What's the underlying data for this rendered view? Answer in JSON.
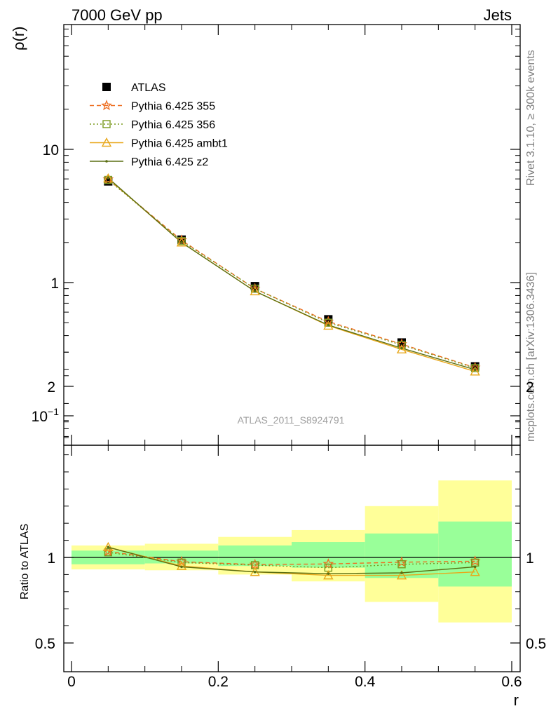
{
  "header": {
    "left": "7000 GeV pp",
    "right": "Jets"
  },
  "side_text": {
    "rivet": "Rivet 3.1.10, ≥ 300k events",
    "mcplots": "mcplots.cern.ch [arXiv:1306.3436]"
  },
  "colors": {
    "atlas": "#000000",
    "p355": "#ee6e20",
    "p356": "#7a9a1e",
    "ambt1": "#e8a71a",
    "z2": "#5a6e12",
    "band_inner": "#99ff99",
    "band_outer": "#ffff99"
  },
  "chart_data": [
    {
      "type": "scatter",
      "panel": "main",
      "watermark": "ATLAS_2011_S8924791",
      "ylabel": "ρ(r)",
      "yscale": "log",
      "ylim": [
        0.065,
        80
      ],
      "xlim": [
        -0.02,
        0.6
      ],
      "y_ticks": [
        "10−1",
        "1",
        "10"
      ],
      "legend_position": "top-left",
      "x": [
        0.05,
        0.15,
        0.25,
        0.35,
        0.45,
        0.55
      ],
      "series": [
        {
          "name": "ATLAS",
          "marker": "filled-square",
          "values": [
            5.75,
            2.1,
            0.94,
            0.53,
            0.355,
            0.235
          ]
        },
        {
          "name": "Pythia 6.425 355",
          "marker": "star",
          "line": "dashed",
          "values": [
            5.95,
            2.08,
            0.9,
            0.51,
            0.345,
            0.23
          ]
        },
        {
          "name": "Pythia 6.425 356",
          "marker": "open-square",
          "line": "dotted",
          "values": [
            5.9,
            2.05,
            0.9,
            0.5,
            0.34,
            0.228
          ]
        },
        {
          "name": "Pythia 6.425 ambt1",
          "marker": "open-triangle",
          "line": "solid",
          "values": [
            6.05,
            2.0,
            0.86,
            0.475,
            0.315,
            0.215
          ]
        },
        {
          "name": "Pythia 6.425 z2",
          "marker": "dot",
          "line": "solid",
          "values": [
            6.1,
            2.0,
            0.86,
            0.48,
            0.322,
            0.222
          ]
        }
      ]
    },
    {
      "type": "scatter",
      "panel": "ratio",
      "ylabel": "Ratio to ATLAS",
      "xlabel": "r",
      "ylim": [
        0.4,
        2.4
      ],
      "xlim": [
        -0.02,
        0.6
      ],
      "y_ticks": [
        "0.5",
        "1",
        "2"
      ],
      "x_ticks": [
        "0",
        "0.2",
        "0.4",
        "0.6"
      ],
      "x": [
        0.05,
        0.15,
        0.25,
        0.35,
        0.45,
        0.55
      ],
      "bins": [
        [
          0.0,
          0.1
        ],
        [
          0.1,
          0.2
        ],
        [
          0.2,
          0.3
        ],
        [
          0.3,
          0.4
        ],
        [
          0.4,
          0.5
        ],
        [
          0.5,
          0.6
        ]
      ],
      "band_inner": [
        [
          0.96,
          1.04
        ],
        [
          0.965,
          1.04
        ],
        [
          0.95,
          1.07
        ],
        [
          0.94,
          1.09
        ],
        [
          0.88,
          1.14
        ],
        [
          0.83,
          1.21
        ]
      ],
      "band_outer": [
        [
          0.93,
          1.07
        ],
        [
          0.925,
          1.08
        ],
        [
          0.9,
          1.12
        ],
        [
          0.86,
          1.16
        ],
        [
          0.74,
          1.3
        ],
        [
          0.62,
          1.45
        ]
      ],
      "series": [
        {
          "name": "Pythia 6.425 355",
          "values": [
            1.035,
            0.975,
            0.958,
            0.962,
            0.972,
            0.978
          ]
        },
        {
          "name": "Pythia 6.425 356",
          "values": [
            1.03,
            0.97,
            0.955,
            0.94,
            0.96,
            0.97
          ]
        },
        {
          "name": "Pythia 6.425 ambt1",
          "values": [
            1.06,
            0.95,
            0.915,
            0.895,
            0.895,
            0.915
          ]
        },
        {
          "name": "Pythia 6.425 z2",
          "values": [
            1.06,
            0.945,
            0.915,
            0.905,
            0.91,
            0.945
          ]
        }
      ]
    }
  ]
}
